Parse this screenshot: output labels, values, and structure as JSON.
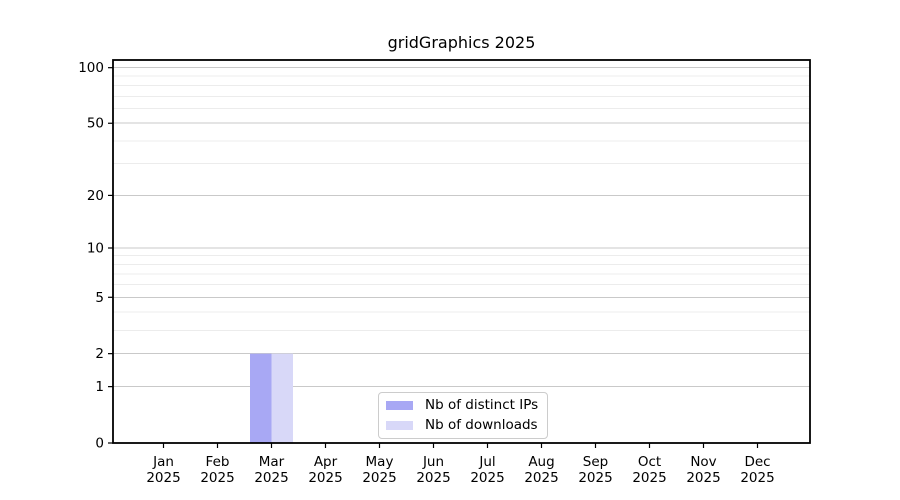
{
  "chart_data": {
    "type": "bar",
    "title": "gridGraphics 2025",
    "categories": [
      "Jan",
      "Feb",
      "Mar",
      "Apr",
      "May",
      "Jun",
      "Jul",
      "Aug",
      "Sep",
      "Oct",
      "Nov",
      "Dec"
    ],
    "year": "2025",
    "series": [
      {
        "name": "Nb of distinct IPs",
        "color": "#a8a8f4",
        "values": [
          0,
          0,
          2,
          0,
          0,
          0,
          0,
          0,
          0,
          0,
          0,
          0
        ]
      },
      {
        "name": "Nb of downloads",
        "color": "#d8d8f8",
        "values": [
          0,
          0,
          2,
          0,
          0,
          0,
          0,
          0,
          0,
          0,
          0,
          0
        ]
      }
    ],
    "xlabel": "",
    "ylabel": "",
    "y_scale": "log1p",
    "y_ticks": [
      0,
      1,
      2,
      5,
      10,
      20,
      50,
      100
    ],
    "y_minor_gridlines": [
      3,
      4,
      6,
      7,
      8,
      9,
      30,
      40,
      60,
      70,
      80,
      90
    ],
    "ylim": [
      0,
      110
    ],
    "grid": "horizontal-major-and-minor",
    "legend_position": "bottom-center-inside",
    "colors": {
      "grid_major": "#c9c9c9",
      "grid_minor": "#ececec",
      "spine": "#000000",
      "tick": "#000000",
      "background": "#ffffff"
    }
  }
}
